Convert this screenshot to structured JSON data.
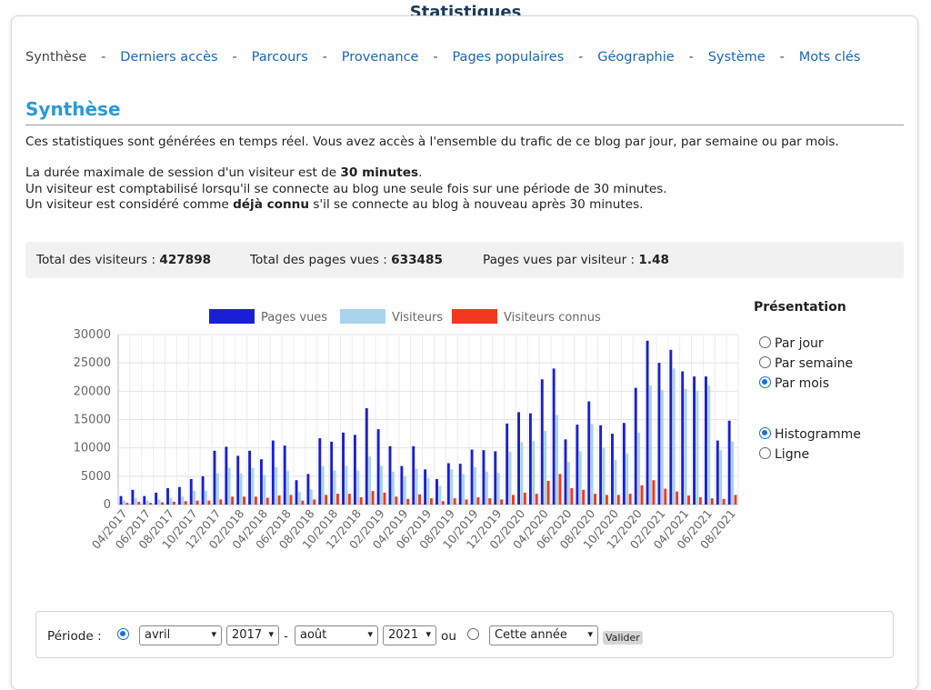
{
  "header": {
    "title": "Statistiques"
  },
  "nav": [
    {
      "label": "Synthèse",
      "current": true
    },
    {
      "label": "Derniers accès",
      "current": false
    },
    {
      "label": "Parcours",
      "current": false
    },
    {
      "label": "Provenance",
      "current": false
    },
    {
      "label": "Pages populaires",
      "current": false
    },
    {
      "label": "Géographie",
      "current": false
    },
    {
      "label": "Système",
      "current": false
    },
    {
      "label": "Mots clés",
      "current": false
    }
  ],
  "nav_separator": "-",
  "section": {
    "title": "Synthèse",
    "intro": "Ces statistiques sont générées en temps réel. Vous avez accès à l'ensemble du trafic de ce blog par jour, par semaine ou par mois.",
    "line1_pre": "La durée maximale de session d'un visiteur est de ",
    "line1_bold": "30 minutes",
    "line1_post": ".",
    "line2": "Un visiteur est comptabilisé lorsqu'il se connecte au blog une seule fois sur une période de 30 minutes.",
    "line3_pre": "Un visiteur est considéré comme ",
    "line3_bold": "déjà connu",
    "line3_post": " s'il se connecte au blog à nouveau après 30 minutes."
  },
  "totals": {
    "visitors_label": "Total des visiteurs : ",
    "visitors_value": "427898",
    "pages_label": "Total des pages vues : ",
    "pages_value": "633485",
    "ratio_label": "Pages vues par visiteur : ",
    "ratio_value": "1.48"
  },
  "presentation": {
    "title": "Présentation",
    "period_options": [
      {
        "label": "Par jour",
        "checked": false
      },
      {
        "label": "Par semaine",
        "checked": false
      },
      {
        "label": "Par mois",
        "checked": true
      }
    ],
    "type_options": [
      {
        "label": "Histogramme",
        "checked": true
      },
      {
        "label": "Ligne",
        "checked": false
      }
    ]
  },
  "period": {
    "label": "Période :",
    "range_checked": true,
    "from_month": "avril",
    "from_year": "2017",
    "dash": "-",
    "to_month": "août",
    "to_year": "2021",
    "or_label": "ou",
    "preset_checked": false,
    "preset": "Cette année",
    "submit": "Valider"
  },
  "colors": {
    "pages": "#1a1fd6",
    "visitors": "#a8d4ee",
    "known": "#f2381e",
    "link": "#1a66b3",
    "section_title": "#2a9ad8"
  },
  "chart_data": {
    "type": "bar",
    "grid": true,
    "legend_position": "top",
    "ylim": [
      0,
      30000
    ],
    "yticks": [
      "0",
      "5000",
      "10000",
      "15000",
      "20000",
      "25000",
      "30000"
    ],
    "categories": [
      "04/2017",
      "05/2017",
      "06/2017",
      "07/2017",
      "08/2017",
      "09/2017",
      "10/2017",
      "11/2017",
      "12/2017",
      "01/2018",
      "02/2018",
      "03/2018",
      "04/2018",
      "05/2018",
      "06/2018",
      "07/2018",
      "08/2018",
      "09/2018",
      "10/2018",
      "11/2018",
      "12/2018",
      "01/2019",
      "02/2019",
      "03/2019",
      "04/2019",
      "05/2019",
      "06/2019",
      "07/2019",
      "08/2019",
      "09/2019",
      "10/2019",
      "11/2019",
      "12/2019",
      "01/2020",
      "02/2020",
      "03/2020",
      "04/2020",
      "05/2020",
      "06/2020",
      "07/2020",
      "08/2020",
      "09/2020",
      "10/2020",
      "11/2020",
      "12/2020",
      "01/2021",
      "02/2021",
      "03/2021",
      "04/2021",
      "05/2021",
      "06/2021",
      "07/2021",
      "08/2021"
    ],
    "tick_labels": [
      "04/2017",
      "06/2017",
      "08/2017",
      "10/2017",
      "12/2017",
      "02/2018",
      "04/2018",
      "06/2018",
      "08/2018",
      "10/2018",
      "12/2018",
      "02/2019",
      "04/2019",
      "06/2019",
      "08/2019",
      "10/2019",
      "12/2019",
      "02/2020",
      "04/2020",
      "06/2020",
      "08/2020",
      "10/2020",
      "12/2020",
      "02/2021",
      "04/2021",
      "06/2021",
      "08/2021"
    ],
    "series": [
      {
        "name": "Pages vues",
        "values": [
          1500,
          2600,
          1500,
          2100,
          2900,
          3100,
          4500,
          5000,
          9500,
          10200,
          8600,
          9500,
          8000,
          11300,
          10400,
          4300,
          5400,
          11700,
          11100,
          12700,
          12300,
          17000,
          13300,
          10300,
          6800,
          10300,
          6200,
          4500,
          7300,
          7200,
          9700,
          9600,
          9400,
          14300,
          16300,
          16100,
          22100,
          24000,
          11500,
          14100,
          18200,
          14000,
          12500,
          14400,
          20600,
          28900,
          25000,
          27300,
          23500,
          22600,
          22600,
          11300,
          14800
        ]
      },
      {
        "name": "Visiteurs",
        "values": [
          700,
          1100,
          700,
          900,
          1200,
          1400,
          2400,
          2400,
          5500,
          6500,
          5500,
          6500,
          5200,
          6600,
          5900,
          2200,
          2700,
          6800,
          6000,
          6800,
          6000,
          8500,
          6800,
          5800,
          5000,
          6300,
          4700,
          3300,
          6200,
          5400,
          6600,
          5800,
          5600,
          9300,
          11000,
          11200,
          13000,
          15800,
          7500,
          9400,
          14200,
          10000,
          7900,
          9000,
          12700,
          21000,
          20200,
          24000,
          20400,
          20100,
          21000,
          9600,
          11100
        ]
      },
      {
        "name": "Visiteurs connus",
        "values": [
          300,
          500,
          300,
          400,
          500,
          600,
          700,
          700,
          900,
          1400,
          1400,
          1400,
          1200,
          1600,
          1700,
          700,
          900,
          1700,
          1900,
          1900,
          1300,
          2400,
          2100,
          1400,
          1000,
          1800,
          1100,
          600,
          1100,
          900,
          1300,
          1100,
          900,
          1700,
          2100,
          1900,
          4200,
          5400,
          2900,
          2600,
          1900,
          1700,
          1700,
          1900,
          3400,
          4300,
          2800,
          2300,
          1600,
          1300,
          1100,
          1000,
          1700
        ]
      }
    ]
  }
}
